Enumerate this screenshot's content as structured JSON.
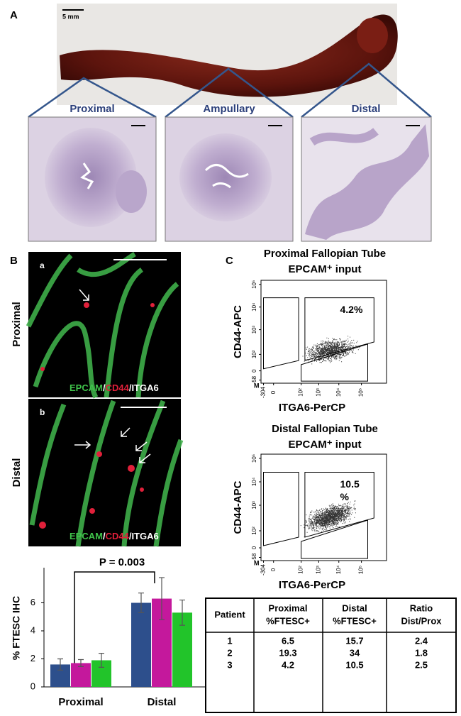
{
  "panel_a": {
    "label": "A",
    "scale_bar": "5 mm",
    "sections": [
      "Proximal",
      "Ampullary",
      "Distal"
    ]
  },
  "panel_b": {
    "label": "B",
    "images": [
      {
        "letter": "a",
        "row_label": "Proximal"
      },
      {
        "letter": "b",
        "row_label": "Distal"
      }
    ],
    "stain": [
      "EPCAM",
      "/",
      "CD44",
      "/ITGA6"
    ]
  },
  "panel_c": {
    "label": "C",
    "plots": [
      {
        "title": [
          "Proximal Fallopian Tube",
          "EPCAM⁺ input"
        ],
        "gate_label": [
          "4.2%"
        ]
      },
      {
        "title": [
          "Distal Fallopian Tube",
          "EPCAM⁺ input"
        ],
        "gate_label": [
          "10.5",
          "%"
        ]
      }
    ],
    "y_label": "CD44-APC",
    "x_label": "ITGA6-PerCP",
    "yticks": [
      "10⁵",
      "10⁴",
      "10³",
      "10²",
      "0",
      "-58"
    ],
    "xticks": [
      "-304",
      "0",
      "10²",
      "10³",
      "10⁴",
      "10⁵"
    ],
    "corner": "M"
  },
  "chart_data": {
    "type": "bar",
    "y_label": "% FTESC IHC",
    "annotation": "P = 0.003",
    "categories": [
      "Proximal",
      "Distal"
    ],
    "series": [
      {
        "color": "#2d4f8c",
        "values": [
          1.6,
          6.0
        ],
        "errors": [
          0.4,
          0.7
        ]
      },
      {
        "color": "#c4189c",
        "values": [
          1.7,
          6.3
        ],
        "errors": [
          0.25,
          1.5
        ]
      },
      {
        "color": "#22c42a",
        "values": [
          1.9,
          5.3
        ],
        "errors": [
          0.5,
          0.9
        ]
      }
    ],
    "ylim": [
      0,
      8
    ],
    "yticks": [
      0,
      2,
      4,
      6
    ]
  },
  "table": {
    "header": [
      [
        "Patient"
      ],
      [
        "Proximal",
        "%FTESC+"
      ],
      [
        "Distal",
        "%FTESC+"
      ],
      [
        "Ratio",
        "Dist/Prox"
      ]
    ],
    "rows": [
      [
        "1",
        "6.5",
        "15.7",
        "2.4"
      ],
      [
        "2",
        "19.3",
        "34",
        "1.8"
      ],
      [
        "3",
        "4.2",
        "10.5",
        "2.5"
      ]
    ]
  }
}
